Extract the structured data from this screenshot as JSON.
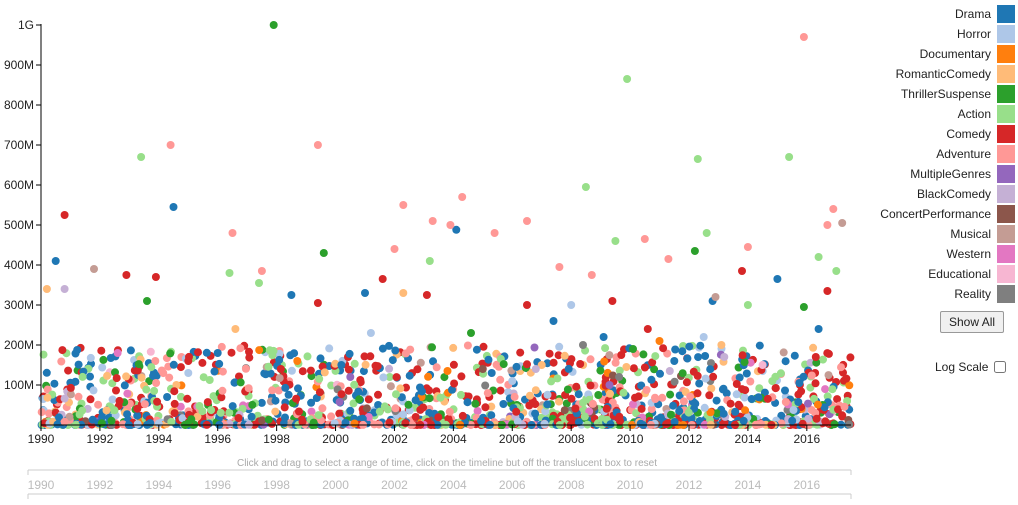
{
  "chart_data": {
    "type": "scatter",
    "x_axis": {
      "min": 1990,
      "max": 2017.5,
      "ticks": [
        1990,
        1992,
        1994,
        1996,
        1998,
        2000,
        2002,
        2004,
        2006,
        2008,
        2010,
        2012,
        2014,
        2016
      ]
    },
    "y_axis": {
      "min": 0,
      "max": 1000000000,
      "ticks": [
        100000000,
        200000000,
        300000000,
        400000000,
        500000000,
        600000000,
        700000000,
        800000000,
        900000000,
        1000000000
      ],
      "tick_labels": [
        "100M",
        "200M",
        "300M",
        "400M",
        "500M",
        "600M",
        "700M",
        "800M",
        "900M",
        "1G"
      ]
    },
    "series": [
      {
        "name": "Drama",
        "color": "#1f77b4",
        "points": [
          [
            1990.5,
            410000000
          ],
          [
            1994.5,
            545000000
          ],
          [
            1998.5,
            325000000
          ],
          [
            2001,
            330000000
          ],
          [
            2004.1,
            488000000
          ],
          [
            2007.4,
            260000000
          ],
          [
            2009.1,
            220000000
          ],
          [
            2012.8,
            310000000
          ],
          [
            2015,
            365000000
          ],
          [
            1996,
            180000000
          ],
          [
            2000.2,
            150000000
          ],
          [
            2005.3,
            130000000
          ],
          [
            2011.5,
            160000000
          ],
          [
            2016.4,
            240000000
          ]
        ]
      },
      {
        "name": "Horror",
        "color": "#aec7e8",
        "points": [
          [
            2001.2,
            230000000
          ],
          [
            2008,
            300000000
          ],
          [
            2012.5,
            220000000
          ],
          [
            1995,
            130000000
          ],
          [
            2006,
            110000000
          ]
        ]
      },
      {
        "name": "Documentary",
        "color": "#ff7f0e",
        "points": [
          [
            1998.7,
            160000000
          ],
          [
            2003.8,
            135000000
          ],
          [
            2011,
            210000000
          ]
        ]
      },
      {
        "name": "RomanticComedy",
        "color": "#ffbb78",
        "points": [
          [
            1990.2,
            340000000
          ],
          [
            2002.3,
            330000000
          ],
          [
            1996.6,
            240000000
          ],
          [
            2007,
            150000000
          ],
          [
            2013.1,
            200000000
          ]
        ]
      },
      {
        "name": "ThrillerSuspense",
        "color": "#2ca02c",
        "points": [
          [
            1997.9,
            1000000000
          ],
          [
            1999.6,
            430000000
          ],
          [
            1993.6,
            310000000
          ],
          [
            2012.2,
            435000000
          ],
          [
            2015.9,
            295000000
          ],
          [
            2010.1,
            190000000
          ],
          [
            2004.6,
            230000000
          ]
        ]
      },
      {
        "name": "Action",
        "color": "#98df8a",
        "points": [
          [
            1993.4,
            670000000
          ],
          [
            2009.9,
            865000000
          ],
          [
            2012.3,
            665000000
          ],
          [
            2015.4,
            670000000
          ],
          [
            2008.5,
            595000000
          ],
          [
            2009.5,
            460000000
          ],
          [
            2012.6,
            480000000
          ],
          [
            2016.4,
            420000000
          ],
          [
            2017,
            385000000
          ],
          [
            1996.4,
            380000000
          ],
          [
            2003.2,
            410000000
          ],
          [
            1997.4,
            355000000
          ],
          [
            2014,
            300000000
          ]
        ]
      },
      {
        "name": "Comedy",
        "color": "#d62728",
        "points": [
          [
            1990.8,
            525000000
          ],
          [
            1992.9,
            375000000
          ],
          [
            1993.9,
            370000000
          ],
          [
            2001.6,
            365000000
          ],
          [
            2006.5,
            300000000
          ],
          [
            2013.8,
            385000000
          ],
          [
            2003.1,
            325000000
          ],
          [
            1999.4,
            305000000
          ],
          [
            2009.4,
            310000000
          ],
          [
            2016.7,
            335000000
          ],
          [
            1995,
            160000000
          ],
          [
            2010.6,
            240000000
          ]
        ]
      },
      {
        "name": "Adventure",
        "color": "#ff9896",
        "points": [
          [
            1994.4,
            700000000
          ],
          [
            1999.4,
            700000000
          ],
          [
            2015.9,
            970000000
          ],
          [
            2003.9,
            500000000
          ],
          [
            2004.3,
            570000000
          ],
          [
            2002.3,
            550000000
          ],
          [
            2003.3,
            510000000
          ],
          [
            2006.5,
            510000000
          ],
          [
            1996.5,
            480000000
          ],
          [
            2005.4,
            480000000
          ],
          [
            2010.5,
            465000000
          ],
          [
            2014,
            445000000
          ],
          [
            2016.9,
            540000000
          ],
          [
            2016.7,
            500000000
          ],
          [
            2002,
            440000000
          ],
          [
            2011.3,
            415000000
          ],
          [
            2007.6,
            395000000
          ],
          [
            2008.7,
            375000000
          ],
          [
            1997.5,
            385000000
          ]
        ]
      },
      {
        "name": "MultipleGenres",
        "color": "#9467bd",
        "points": [
          [
            2000.5,
            120000000
          ],
          [
            2009.3,
            100000000
          ]
        ]
      },
      {
        "name": "BlackComedy",
        "color": "#c5b0d5",
        "points": [
          [
            1990.8,
            340000000
          ],
          [
            2013.2,
            170000000
          ],
          [
            2006.8,
            140000000
          ]
        ]
      },
      {
        "name": "ConcertPerformance",
        "color": "#8c564b",
        "points": [
          [
            2005,
            140000000
          ]
        ]
      },
      {
        "name": "Musical",
        "color": "#c49c94",
        "points": [
          [
            1991.8,
            390000000
          ],
          [
            2017.2,
            505000000
          ],
          [
            2012.9,
            320000000
          ]
        ]
      },
      {
        "name": "Western",
        "color": "#e377c2",
        "points": [
          [
            1992.6,
            180000000
          ]
        ]
      },
      {
        "name": "Educational",
        "color": "#f7b6d2",
        "points": [
          [
            2014.5,
            150000000
          ]
        ]
      },
      {
        "name": "Reality",
        "color": "#7f7f7f",
        "points": [
          [
            2008.4,
            200000000
          ]
        ]
      }
    ],
    "dense_band": {
      "x_range": [
        1990,
        2017.5
      ],
      "y_max": 200000000,
      "count": 1600
    },
    "brush": {
      "ticks": [
        1990,
        1992,
        1994,
        1996,
        1998,
        2000,
        2002,
        2004,
        2006,
        2008,
        2010,
        2012,
        2014,
        2016
      ]
    }
  },
  "hint_text": "Click and drag to select a range of time, click on the timeline but off the translucent box to reset",
  "legend": [
    {
      "label": "Drama",
      "color": "#1f77b4"
    },
    {
      "label": "Horror",
      "color": "#aec7e8"
    },
    {
      "label": "Documentary",
      "color": "#ff7f0e"
    },
    {
      "label": "RomanticComedy",
      "color": "#ffbb78"
    },
    {
      "label": "ThrillerSuspense",
      "color": "#2ca02c"
    },
    {
      "label": "Action",
      "color": "#98df8a"
    },
    {
      "label": "Comedy",
      "color": "#d62728"
    },
    {
      "label": "Adventure",
      "color": "#ff9896"
    },
    {
      "label": "MultipleGenres",
      "color": "#9467bd"
    },
    {
      "label": "BlackComedy",
      "color": "#c5b0d5"
    },
    {
      "label": "ConcertPerformance",
      "color": "#8c564b"
    },
    {
      "label": "Musical",
      "color": "#c49c94"
    },
    {
      "label": "Western",
      "color": "#e377c2"
    },
    {
      "label": "Educational",
      "color": "#f7b6d2"
    },
    {
      "label": "Reality",
      "color": "#7f7f7f"
    }
  ],
  "controls": {
    "show_all_label": "Show All",
    "log_scale_label": "Log Scale"
  }
}
